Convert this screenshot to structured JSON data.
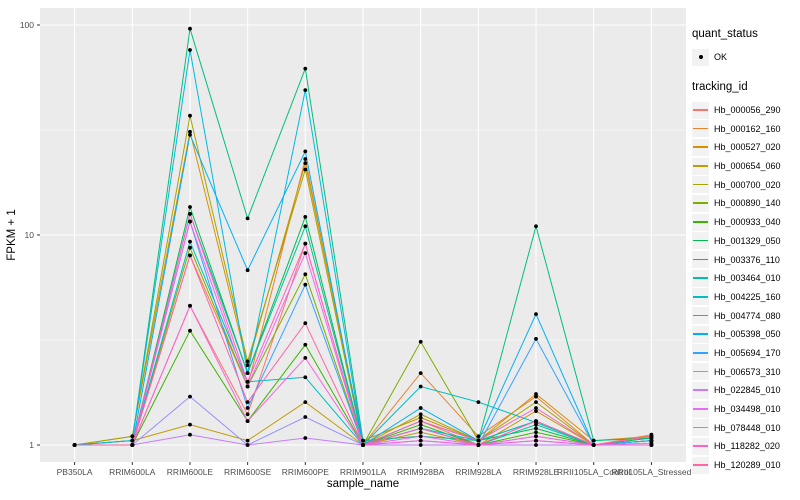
{
  "chart": {
    "ylabel": "FPKM + 1",
    "xlabel": "sample_name",
    "panel_bg": "#EBEBEB",
    "grid_color": "#FFFFFF",
    "tick_label_color": "#4D4D4D",
    "point_color": "#000000"
  },
  "legend": {
    "quant_title": "quant_status",
    "quant_items": [
      {
        "label": "OK"
      }
    ],
    "tracking_title": "tracking_id"
  },
  "chart_data": {
    "type": "line",
    "xlabel": "sample_name",
    "ylabel": "FPKM + 1",
    "yscale": "log10",
    "ylim": [
      0.9,
      115
    ],
    "y_major_ticks": {
      "labels": [
        "1",
        "10",
        "100"
      ],
      "values": [
        1,
        10,
        100
      ]
    },
    "y_minor_ticks": [
      3.1623,
      31.623
    ],
    "grid": true,
    "legend_position": "right",
    "x": [
      "PB350LA",
      "RRIM600LA",
      "RRIM600LE",
      "RRIM600SE",
      "RRIM600PE",
      "RRIM901LA",
      "RRIM928BA",
      "RRIM928LA",
      "RRIM928LE",
      "RRII105LA_Control",
      "RRII105LA_Stressed"
    ],
    "series": [
      {
        "name": "Hb_000056_290",
        "color": "#F8766D",
        "values": [
          1.0,
          1.0,
          4.6,
          1.4,
          9.1,
          1.0,
          1.3,
          1.0,
          1.1,
          1.0,
          1.12
        ]
      },
      {
        "name": "Hb_000162_160",
        "color": "#EA8331",
        "values": [
          1.0,
          1.0,
          8.0,
          1.9,
          23,
          1.0,
          2.2,
          1.1,
          1.7,
          1.0,
          1.05
        ]
      },
      {
        "name": "Hb_000527_020",
        "color": "#D89000",
        "values": [
          1.0,
          1.1,
          31,
          2.4,
          22,
          1.05,
          1.35,
          1.05,
          1.75,
          1.05,
          1.1
        ]
      },
      {
        "name": "Hb_000654_060",
        "color": "#C09B00",
        "values": [
          1.0,
          1.05,
          1.25,
          1.05,
          1.6,
          1.0,
          1.15,
          1.0,
          1.45,
          1.0,
          1.1
        ]
      },
      {
        "name": "Hb_000700_020",
        "color": "#A3A500",
        "values": [
          1.0,
          1.1,
          37,
          2.5,
          20.5,
          1.0,
          1.4,
          1.05,
          1.6,
          1.0,
          1.05
        ]
      },
      {
        "name": "Hb_000890_140",
        "color": "#7CAE00",
        "values": [
          1.0,
          1.0,
          8.7,
          1.9,
          6.5,
          1.0,
          3.1,
          1.05,
          1.3,
          1.0,
          1.05
        ]
      },
      {
        "name": "Hb_000933_040",
        "color": "#39B600",
        "values": [
          1.0,
          1.0,
          3.5,
          1.3,
          3.0,
          1.0,
          1.25,
          1.0,
          1.15,
          1.0,
          1.05
        ]
      },
      {
        "name": "Hb_001329_050",
        "color": "#00BB4E",
        "values": [
          1.0,
          1.0,
          13.6,
          2.2,
          12.2,
          1.0,
          1.3,
          1.05,
          1.2,
          1.0,
          1.08
        ]
      },
      {
        "name": "Hb_003376_110",
        "color": "#00BF7D",
        "values": [
          1.0,
          1.05,
          96,
          12,
          62,
          1.05,
          1.1,
          1.05,
          11,
          1.05,
          1.08
        ]
      },
      {
        "name": "Hb_003464_010",
        "color": "#00C1A3",
        "values": [
          1.0,
          1.0,
          12.6,
          2.2,
          11,
          1.0,
          1.2,
          1.0,
          1.25,
          1.0,
          1.05
        ]
      },
      {
        "name": "Hb_004225_160",
        "color": "#00BFC4",
        "values": [
          1.0,
          1.0,
          9.3,
          2.0,
          2.1,
          1.0,
          1.9,
          1.6,
          1.28,
          1.0,
          1.0
        ]
      },
      {
        "name": "Hb_004774_080",
        "color": "#00BAE0",
        "values": [
          1.0,
          1.05,
          76,
          2.2,
          49,
          1.0,
          1.2,
          1.05,
          1.3,
          1.0,
          1.05
        ]
      },
      {
        "name": "Hb_005398_050",
        "color": "#00B0F6",
        "values": [
          1.0,
          1.0,
          30,
          6.8,
          25,
          1.0,
          1.5,
          1.05,
          4.2,
          1.0,
          1.0
        ]
      },
      {
        "name": "Hb_005694_170",
        "color": "#35A2FF",
        "values": [
          1.0,
          1.0,
          11.6,
          1.5,
          5.8,
          1.0,
          1.2,
          1.0,
          3.2,
          1.0,
          1.05
        ]
      },
      {
        "name": "Hb_006573_310",
        "color": "#9590FF",
        "values": [
          1.0,
          1.0,
          1.7,
          1.0,
          1.36,
          1.0,
          1.05,
          1.0,
          1.05,
          1.0,
          1.0
        ]
      },
      {
        "name": "Hb_022845_010",
        "color": "#C77CFF",
        "values": [
          1.0,
          1.0,
          1.12,
          1.0,
          1.08,
          1.0,
          1.0,
          1.0,
          1.0,
          1.0,
          1.02
        ]
      },
      {
        "name": "Hb_034498_010",
        "color": "#E76BF3",
        "values": [
          1.0,
          1.0,
          11.6,
          1.9,
          8.2,
          1.0,
          1.1,
          1.0,
          1.1,
          1.0,
          1.0
        ]
      },
      {
        "name": "Hb_078448_010",
        "color": "#FA62DB",
        "values": [
          1.0,
          1.0,
          4.6,
          1.3,
          2.6,
          1.0,
          1.05,
          1.0,
          1.05,
          1.0,
          1.0
        ]
      },
      {
        "name": "Hb_118282_020",
        "color": "#FF61C3",
        "values": [
          1.0,
          1.0,
          12.6,
          2.0,
          9.1,
          1.0,
          1.3,
          1.05,
          1.5,
          1.0,
          1.1
        ]
      },
      {
        "name": "Hb_120289_010",
        "color": "#FF65A7",
        "values": [
          1.0,
          1.0,
          8.0,
          1.6,
          3.8,
          1.0,
          1.2,
          1.0,
          1.3,
          1.0,
          1.1
        ]
      }
    ]
  }
}
